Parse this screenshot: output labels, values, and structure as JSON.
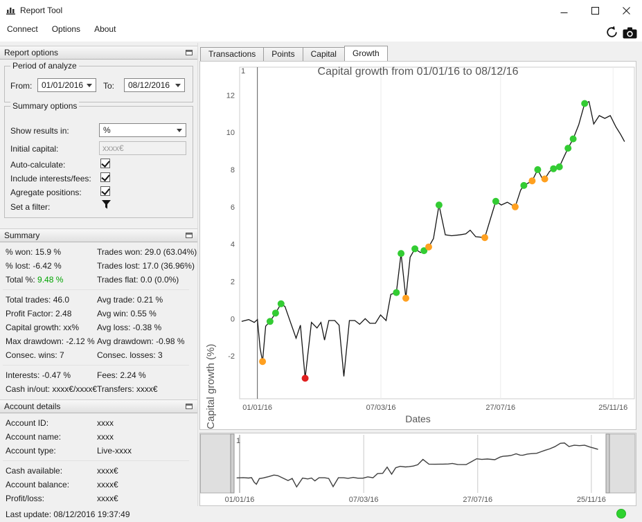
{
  "window": {
    "title": "Report Tool",
    "menu": [
      "Connect",
      "Options",
      "About"
    ]
  },
  "icons": {
    "app": "bar-chart",
    "titlebar": [
      "minimize",
      "maximize",
      "close"
    ],
    "toolbar": [
      "refresh-arrows",
      "camera-screenshot"
    ],
    "dock_header": "float-panel",
    "combo": "chevron-down",
    "filter": "filter-funnel",
    "status": "green-connection-dot"
  },
  "report_options": {
    "header": "Report options",
    "period": {
      "legend": "Period of analyze",
      "from_label": "From:",
      "from_value": "01/01/2016",
      "to_label": "To:",
      "to_value": "08/12/2016"
    },
    "options": {
      "legend": "Summary options",
      "show_results_label": "Show results in:",
      "show_results_value": "%",
      "initial_capital_label": "Initial capital:",
      "initial_capital_value": "xxxx€",
      "auto_calculate_label": "Auto-calculate:",
      "auto_calculate_checked": true,
      "include_interests_label": "Include interests/fees:",
      "include_interests_checked": true,
      "agregate_positions_label": "Agregate positions:",
      "agregate_positions_checked": true,
      "set_filter_label": "Set a filter:"
    }
  },
  "summary": {
    "header": "Summary",
    "positive_color": "#00a400",
    "sections": [
      [
        [
          [
            "% won:",
            "15.9 %"
          ],
          [
            "Trades won:",
            "29.0 (63.04%)"
          ]
        ],
        [
          [
            "% lost:",
            "-6.42 %"
          ],
          [
            "Trades lost:",
            "17.0 (36.96%)"
          ]
        ],
        [
          [
            "Total %:",
            "9.48 %",
            "#00a400"
          ],
          [
            "Trades flat:",
            "0.0 (0.0%)"
          ]
        ]
      ],
      [
        [
          [
            "Total trades:",
            "46.0"
          ],
          [
            "Avg trade: 0.21 %",
            ""
          ]
        ],
        [
          [
            "Profit Factor:",
            "2.48"
          ],
          [
            "Avg win: 0.55 %",
            ""
          ]
        ],
        [
          [
            "Capital growth:",
            "xx%"
          ],
          [
            "Avg loss: -0.38 %",
            ""
          ]
        ],
        [
          [
            "Max drawdown:",
            "-2.12 %"
          ],
          [
            "Avg drawdown: -0.98 %",
            ""
          ]
        ],
        [
          [
            "Consec. wins:",
            "7"
          ],
          [
            "Consec. losses: 3",
            ""
          ]
        ]
      ],
      [
        [
          [
            "Interests:",
            "-0.47 %"
          ],
          [
            "Fees: 2.24 %",
            ""
          ]
        ],
        [
          [
            "Cash in/out:",
            "xxxx€/xxxx€"
          ],
          [
            "Transfers: xxxx€",
            ""
          ]
        ]
      ]
    ]
  },
  "account": {
    "header": "Account details",
    "sections": [
      [
        [
          "Account ID:",
          "xxxx"
        ],
        [
          "Account name:",
          "xxxx"
        ],
        [
          "Account type:",
          "Live-xxxx"
        ]
      ],
      [
        [
          "Cash available:",
          "xxxx€"
        ],
        [
          "Account balance:",
          "xxxx€"
        ],
        [
          "Profit/loss:",
          "xxxx€"
        ]
      ]
    ]
  },
  "tabs": {
    "items": [
      "Transactions",
      "Points",
      "Capital",
      "Growth"
    ],
    "active_index": 3
  },
  "statusbar": {
    "last_update": "Last update: 08/12/2016 19:37:49"
  },
  "chart_data": {
    "type": "line",
    "title": "Capital growth from 01/01/16 to 08/12/16",
    "xlabel": "Dates",
    "ylabel": "Capital growth (%)",
    "ylim": [
      -4.3,
      13.5
    ],
    "yticks": [
      -2,
      0,
      2,
      4,
      6,
      8,
      10,
      12
    ],
    "xticks": [
      {
        "label": "01/01/16",
        "x": 0.045
      },
      {
        "label": "07/03/16",
        "x": 0.358
      },
      {
        "label": "27/07/16",
        "x": 0.661
      },
      {
        "label": "25/11/16",
        "x": 0.946
      }
    ],
    "top_left_label": "1",
    "line_color": "#141414",
    "marker_colors": {
      "g": "#33cc33",
      "o": "#ffa020",
      "r": "#e02020"
    },
    "points": [
      {
        "x": 0.005,
        "y": -0.15
      },
      {
        "x": 0.023,
        "y": -0.05
      },
      {
        "x": 0.037,
        "y": -0.2
      },
      {
        "x": 0.045,
        "y": -0.05
      },
      {
        "x": 0.052,
        "y": -1.6
      },
      {
        "x": 0.058,
        "y": -2.3,
        "m": "o"
      },
      {
        "x": 0.066,
        "y": -0.4
      },
      {
        "x": 0.077,
        "y": -0.15,
        "m": "g"
      },
      {
        "x": 0.091,
        "y": 0.3,
        "m": "g"
      },
      {
        "x": 0.105,
        "y": 0.8,
        "m": "g"
      },
      {
        "x": 0.115,
        "y": 0.65
      },
      {
        "x": 0.129,
        "y": -0.2
      },
      {
        "x": 0.143,
        "y": -1.05
      },
      {
        "x": 0.154,
        "y": -0.35
      },
      {
        "x": 0.166,
        "y": -3.2,
        "m": "r"
      },
      {
        "x": 0.182,
        "y": -0.2
      },
      {
        "x": 0.196,
        "y": -0.5
      },
      {
        "x": 0.206,
        "y": -0.2
      },
      {
        "x": 0.215,
        "y": -1.15
      },
      {
        "x": 0.226,
        "y": -0.1
      },
      {
        "x": 0.241,
        "y": -0.1
      },
      {
        "x": 0.252,
        "y": -0.35
      },
      {
        "x": 0.264,
        "y": -3.1
      },
      {
        "x": 0.278,
        "y": -0.1
      },
      {
        "x": 0.292,
        "y": -0.1
      },
      {
        "x": 0.304,
        "y": -0.3
      },
      {
        "x": 0.318,
        "y": 0.0
      },
      {
        "x": 0.33,
        "y": -0.25
      },
      {
        "x": 0.344,
        "y": -0.25
      },
      {
        "x": 0.357,
        "y": 0.2
      },
      {
        "x": 0.371,
        "y": -0.1
      },
      {
        "x": 0.383,
        "y": 1.3
      },
      {
        "x": 0.397,
        "y": 1.4,
        "m": "g"
      },
      {
        "x": 0.409,
        "y": 3.5,
        "m": "g"
      },
      {
        "x": 0.421,
        "y": 1.1,
        "m": "o"
      },
      {
        "x": 0.432,
        "y": 3.3
      },
      {
        "x": 0.444,
        "y": 3.75,
        "m": "g"
      },
      {
        "x": 0.458,
        "y": 3.55
      },
      {
        "x": 0.467,
        "y": 3.65,
        "m": "g"
      },
      {
        "x": 0.479,
        "y": 3.85,
        "m": "o"
      },
      {
        "x": 0.491,
        "y": 4.3
      },
      {
        "x": 0.505,
        "y": 6.1,
        "m": "g"
      },
      {
        "x": 0.521,
        "y": 4.5
      },
      {
        "x": 0.537,
        "y": 4.45
      },
      {
        "x": 0.558,
        "y": 4.5
      },
      {
        "x": 0.573,
        "y": 4.55
      },
      {
        "x": 0.584,
        "y": 4.75
      },
      {
        "x": 0.598,
        "y": 4.4
      },
      {
        "x": 0.621,
        "y": 4.35,
        "m": "o"
      },
      {
        "x": 0.636,
        "y": 5.4
      },
      {
        "x": 0.649,
        "y": 6.3,
        "m": "g"
      },
      {
        "x": 0.663,
        "y": 6.1
      },
      {
        "x": 0.678,
        "y": 6.25
      },
      {
        "x": 0.698,
        "y": 6.0,
        "m": "o"
      },
      {
        "x": 0.712,
        "y": 6.9
      },
      {
        "x": 0.72,
        "y": 7.15,
        "m": "g"
      },
      {
        "x": 0.733,
        "y": 7.3
      },
      {
        "x": 0.741,
        "y": 7.4,
        "m": "o"
      },
      {
        "x": 0.755,
        "y": 8.0,
        "m": "g"
      },
      {
        "x": 0.766,
        "y": 7.55
      },
      {
        "x": 0.773,
        "y": 7.5,
        "m": "o"
      },
      {
        "x": 0.785,
        "y": 7.9
      },
      {
        "x": 0.795,
        "y": 8.05,
        "m": "g"
      },
      {
        "x": 0.81,
        "y": 8.15,
        "m": "g"
      },
      {
        "x": 0.822,
        "y": 8.7
      },
      {
        "x": 0.832,
        "y": 9.15,
        "m": "g"
      },
      {
        "x": 0.845,
        "y": 9.65,
        "m": "g"
      },
      {
        "x": 0.859,
        "y": 10.4
      },
      {
        "x": 0.874,
        "y": 11.55,
        "m": "g"
      },
      {
        "x": 0.885,
        "y": 11.65
      },
      {
        "x": 0.897,
        "y": 10.45
      },
      {
        "x": 0.911,
        "y": 10.9
      },
      {
        "x": 0.925,
        "y": 10.75
      },
      {
        "x": 0.939,
        "y": 10.9
      },
      {
        "x": 0.953,
        "y": 10.3
      },
      {
        "x": 0.965,
        "y": 9.9
      },
      {
        "x": 0.975,
        "y": 9.5
      }
    ],
    "navigator": {
      "top_left_label": "1",
      "line_color": "#3f3f3f",
      "xticks": [
        {
          "label": "01/01/16",
          "x": 0.013
        },
        {
          "label": "07/03/16",
          "x": 0.346
        },
        {
          "label": "27/07/16",
          "x": 0.652
        },
        {
          "label": "25/11/16",
          "x": 0.957
        }
      ]
    }
  }
}
